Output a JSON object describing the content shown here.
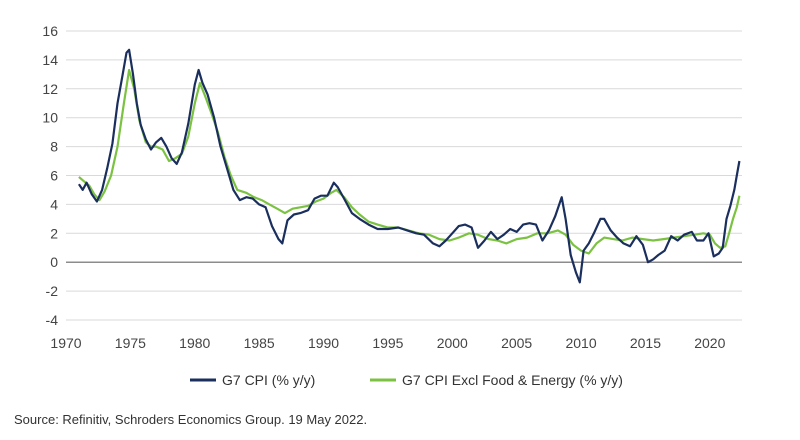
{
  "chart_data": {
    "type": "line",
    "title": "",
    "xlabel": "",
    "ylabel": "",
    "xlim": [
      1970,
      2022.5
    ],
    "ylim": [
      -4,
      16
    ],
    "x_ticks": [
      1970,
      1975,
      1980,
      1985,
      1990,
      1995,
      2000,
      2005,
      2010,
      2015,
      2020
    ],
    "y_ticks": [
      -4,
      -2,
      0,
      2,
      4,
      6,
      8,
      10,
      12,
      14,
      16
    ],
    "grid": "horizontal",
    "legend_position": "bottom",
    "series": [
      {
        "name": "G7 CPI (% y/y)",
        "color": "#1b2f5e",
        "points": [
          [
            1971.0,
            5.4
          ],
          [
            1971.3,
            5.0
          ],
          [
            1971.6,
            5.5
          ],
          [
            1972.0,
            4.7
          ],
          [
            1972.4,
            4.2
          ],
          [
            1972.8,
            5.0
          ],
          [
            1973.2,
            6.5
          ],
          [
            1973.6,
            8.2
          ],
          [
            1974.0,
            11.0
          ],
          [
            1974.4,
            13.0
          ],
          [
            1974.7,
            14.5
          ],
          [
            1974.9,
            14.7
          ],
          [
            1975.2,
            13.0
          ],
          [
            1975.5,
            11.0
          ],
          [
            1975.8,
            9.5
          ],
          [
            1976.2,
            8.5
          ],
          [
            1976.6,
            7.8
          ],
          [
            1977.0,
            8.3
          ],
          [
            1977.4,
            8.6
          ],
          [
            1977.8,
            8.0
          ],
          [
            1978.2,
            7.2
          ],
          [
            1978.6,
            6.8
          ],
          [
            1979.0,
            7.6
          ],
          [
            1979.5,
            9.6
          ],
          [
            1980.0,
            12.3
          ],
          [
            1980.3,
            13.3
          ],
          [
            1980.6,
            12.4
          ],
          [
            1981.0,
            11.6
          ],
          [
            1981.5,
            10.0
          ],
          [
            1982.0,
            8.0
          ],
          [
            1982.5,
            6.5
          ],
          [
            1983.0,
            5.0
          ],
          [
            1983.5,
            4.3
          ],
          [
            1984.0,
            4.5
          ],
          [
            1984.5,
            4.4
          ],
          [
            1985.0,
            4.0
          ],
          [
            1985.5,
            3.8
          ],
          [
            1986.0,
            2.5
          ],
          [
            1986.5,
            1.6
          ],
          [
            1986.8,
            1.3
          ],
          [
            1987.2,
            2.9
          ],
          [
            1987.7,
            3.3
          ],
          [
            1988.2,
            3.4
          ],
          [
            1988.8,
            3.6
          ],
          [
            1989.3,
            4.4
          ],
          [
            1989.8,
            4.6
          ],
          [
            1990.3,
            4.6
          ],
          [
            1990.8,
            5.5
          ],
          [
            1991.1,
            5.2
          ],
          [
            1991.6,
            4.4
          ],
          [
            1992.2,
            3.4
          ],
          [
            1992.8,
            3.0
          ],
          [
            1993.5,
            2.6
          ],
          [
            1994.2,
            2.3
          ],
          [
            1995.0,
            2.3
          ],
          [
            1995.8,
            2.4
          ],
          [
            1996.5,
            2.2
          ],
          [
            1997.2,
            2.0
          ],
          [
            1997.8,
            1.9
          ],
          [
            1998.5,
            1.3
          ],
          [
            1999.0,
            1.1
          ],
          [
            1999.5,
            1.5
          ],
          [
            2000.0,
            2.0
          ],
          [
            2000.5,
            2.5
          ],
          [
            2001.0,
            2.6
          ],
          [
            2001.5,
            2.4
          ],
          [
            2002.0,
            1.0
          ],
          [
            2002.5,
            1.5
          ],
          [
            2003.0,
            2.1
          ],
          [
            2003.5,
            1.6
          ],
          [
            2004.0,
            1.9
          ],
          [
            2004.5,
            2.3
          ],
          [
            2005.0,
            2.1
          ],
          [
            2005.5,
            2.6
          ],
          [
            2006.0,
            2.7
          ],
          [
            2006.5,
            2.6
          ],
          [
            2007.0,
            1.5
          ],
          [
            2007.5,
            2.2
          ],
          [
            2008.0,
            3.2
          ],
          [
            2008.5,
            4.5
          ],
          [
            2008.8,
            3.0
          ],
          [
            2009.2,
            0.5
          ],
          [
            2009.6,
            -0.7
          ],
          [
            2009.9,
            -1.4
          ],
          [
            2010.2,
            0.8
          ],
          [
            2010.6,
            1.3
          ],
          [
            2011.0,
            2.0
          ],
          [
            2011.5,
            3.0
          ],
          [
            2011.8,
            3.0
          ],
          [
            2012.3,
            2.2
          ],
          [
            2012.8,
            1.7
          ],
          [
            2013.3,
            1.3
          ],
          [
            2013.8,
            1.1
          ],
          [
            2014.3,
            1.8
          ],
          [
            2014.8,
            1.2
          ],
          [
            2015.2,
            0.0
          ],
          [
            2015.6,
            0.2
          ],
          [
            2016.0,
            0.5
          ],
          [
            2016.5,
            0.8
          ],
          [
            2017.0,
            1.8
          ],
          [
            2017.5,
            1.5
          ],
          [
            2018.0,
            1.9
          ],
          [
            2018.6,
            2.1
          ],
          [
            2019.0,
            1.5
          ],
          [
            2019.5,
            1.5
          ],
          [
            2019.9,
            2.0
          ],
          [
            2020.3,
            0.4
          ],
          [
            2020.7,
            0.6
          ],
          [
            2021.0,
            1.0
          ],
          [
            2021.3,
            3.0
          ],
          [
            2021.6,
            3.9
          ],
          [
            2021.9,
            5.0
          ],
          [
            2022.1,
            6.0
          ],
          [
            2022.3,
            7.0
          ]
        ]
      },
      {
        "name": "G7 CPI Excl Food & Energy (% y/y)",
        "color": "#7cc242",
        "points": [
          [
            1971.0,
            5.9
          ],
          [
            1971.4,
            5.6
          ],
          [
            1971.8,
            5.3
          ],
          [
            1972.2,
            4.7
          ],
          [
            1972.6,
            4.3
          ],
          [
            1973.0,
            4.9
          ],
          [
            1973.5,
            6.0
          ],
          [
            1974.0,
            8.0
          ],
          [
            1974.5,
            11.0
          ],
          [
            1974.9,
            13.3
          ],
          [
            1975.3,
            12.0
          ],
          [
            1975.7,
            9.8
          ],
          [
            1976.2,
            8.3
          ],
          [
            1976.6,
            8.0
          ],
          [
            1977.0,
            8.0
          ],
          [
            1977.5,
            7.8
          ],
          [
            1978.0,
            7.0
          ],
          [
            1978.5,
            7.2
          ],
          [
            1979.0,
            7.5
          ],
          [
            1979.5,
            8.7
          ],
          [
            1980.0,
            11.0
          ],
          [
            1980.4,
            12.4
          ],
          [
            1980.8,
            11.5
          ],
          [
            1981.3,
            10.3
          ],
          [
            1981.8,
            9.0
          ],
          [
            1982.3,
            7.3
          ],
          [
            1982.8,
            6.0
          ],
          [
            1983.3,
            5.0
          ],
          [
            1984.0,
            4.8
          ],
          [
            1984.6,
            4.5
          ],
          [
            1985.2,
            4.3
          ],
          [
            1985.8,
            4.0
          ],
          [
            1986.4,
            3.7
          ],
          [
            1987.0,
            3.4
          ],
          [
            1987.6,
            3.7
          ],
          [
            1988.2,
            3.8
          ],
          [
            1988.8,
            3.9
          ],
          [
            1989.4,
            4.2
          ],
          [
            1990.0,
            4.4
          ],
          [
            1990.6,
            4.8
          ],
          [
            1991.0,
            5.0
          ],
          [
            1991.6,
            4.5
          ],
          [
            1992.2,
            3.8
          ],
          [
            1992.8,
            3.3
          ],
          [
            1993.5,
            2.8
          ],
          [
            1994.2,
            2.6
          ],
          [
            1995.0,
            2.4
          ],
          [
            1995.8,
            2.4
          ],
          [
            1996.6,
            2.2
          ],
          [
            1997.4,
            2.0
          ],
          [
            1998.2,
            1.9
          ],
          [
            1999.0,
            1.6
          ],
          [
            1999.8,
            1.5
          ],
          [
            2000.5,
            1.7
          ],
          [
            2001.3,
            2.0
          ],
          [
            2002.0,
            1.9
          ],
          [
            2002.8,
            1.6
          ],
          [
            2003.5,
            1.5
          ],
          [
            2004.2,
            1.3
          ],
          [
            2005.0,
            1.6
          ],
          [
            2005.8,
            1.7
          ],
          [
            2006.6,
            2.0
          ],
          [
            2007.4,
            2.0
          ],
          [
            2008.2,
            2.2
          ],
          [
            2008.8,
            1.9
          ],
          [
            2009.4,
            1.2
          ],
          [
            2010.0,
            0.8
          ],
          [
            2010.6,
            0.6
          ],
          [
            2011.2,
            1.3
          ],
          [
            2011.8,
            1.7
          ],
          [
            2012.5,
            1.6
          ],
          [
            2013.2,
            1.5
          ],
          [
            2014.0,
            1.7
          ],
          [
            2014.8,
            1.6
          ],
          [
            2015.6,
            1.5
          ],
          [
            2016.4,
            1.6
          ],
          [
            2017.2,
            1.7
          ],
          [
            2018.0,
            1.8
          ],
          [
            2018.8,
            1.9
          ],
          [
            2019.5,
            2.0
          ],
          [
            2020.0,
            1.9
          ],
          [
            2020.4,
            1.3
          ],
          [
            2020.8,
            1.0
          ],
          [
            2021.2,
            1.1
          ],
          [
            2021.5,
            2.0
          ],
          [
            2021.8,
            3.0
          ],
          [
            2022.1,
            3.8
          ],
          [
            2022.3,
            4.6
          ]
        ]
      }
    ]
  },
  "source": "Source: Refinitiv, Schroders Economics Group. 19 May 2022."
}
